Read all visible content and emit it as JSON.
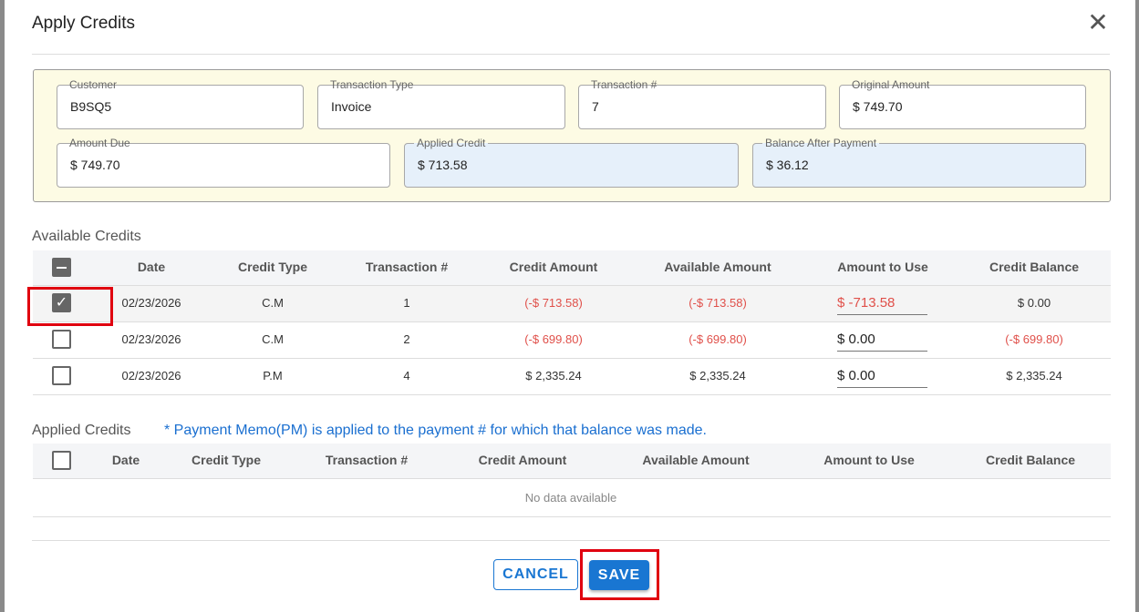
{
  "dialog": {
    "title": "Apply Credits",
    "close_icon": "close-icon"
  },
  "summary": {
    "customer": {
      "label": "Customer",
      "value": "B9SQ5"
    },
    "transaction_type": {
      "label": "Transaction Type",
      "value": "Invoice"
    },
    "transaction_no": {
      "label": "Transaction #",
      "value": "7"
    },
    "original_amount": {
      "label": "Original Amount",
      "value": "$ 749.70"
    },
    "amount_due": {
      "label": "Amount Due",
      "value": "$ 749.70"
    },
    "applied_credit": {
      "label": "Applied Credit",
      "value": "$ 713.58"
    },
    "balance_after": {
      "label": "Balance After Payment",
      "value": "$ 36.12"
    }
  },
  "available": {
    "title": "Available Credits",
    "columns": [
      "Date",
      "Credit Type",
      "Transaction #",
      "Credit Amount",
      "Available Amount",
      "Amount to Use",
      "Credit Balance"
    ],
    "rows": [
      {
        "checked": true,
        "date": "02/23/2026",
        "type": "C.M",
        "txn": "1",
        "credit": "(-$ 713.58)",
        "available": "(-$ 713.58)",
        "use": "$ -713.58",
        "balance": "$ 0.00"
      },
      {
        "checked": false,
        "date": "02/23/2026",
        "type": "C.M",
        "txn": "2",
        "credit": "(-$ 699.80)",
        "available": "(-$ 699.80)",
        "use": "$ 0.00",
        "balance": "(-$ 699.80)"
      },
      {
        "checked": false,
        "date": "02/23/2026",
        "type": "P.M",
        "txn": "4",
        "credit": "$ 2,335.24",
        "available": "$ 2,335.24",
        "use": "$ 0.00",
        "balance": "$ 2,335.24"
      }
    ]
  },
  "applied": {
    "title": "Applied Credits",
    "note": "* Payment Memo(PM) is applied to the payment # for which that balance was made.",
    "columns": [
      "Date",
      "Credit Type",
      "Transaction #",
      "Credit Amount",
      "Available Amount",
      "Amount to Use",
      "Credit Balance"
    ],
    "empty": "No data available"
  },
  "footer": {
    "cancel": "CANCEL",
    "save": "SAVE"
  },
  "colors": {
    "primary": "#1976d2",
    "negative": "#e0504a",
    "highlight": "#e0000f",
    "note": "#1a6fd0"
  }
}
